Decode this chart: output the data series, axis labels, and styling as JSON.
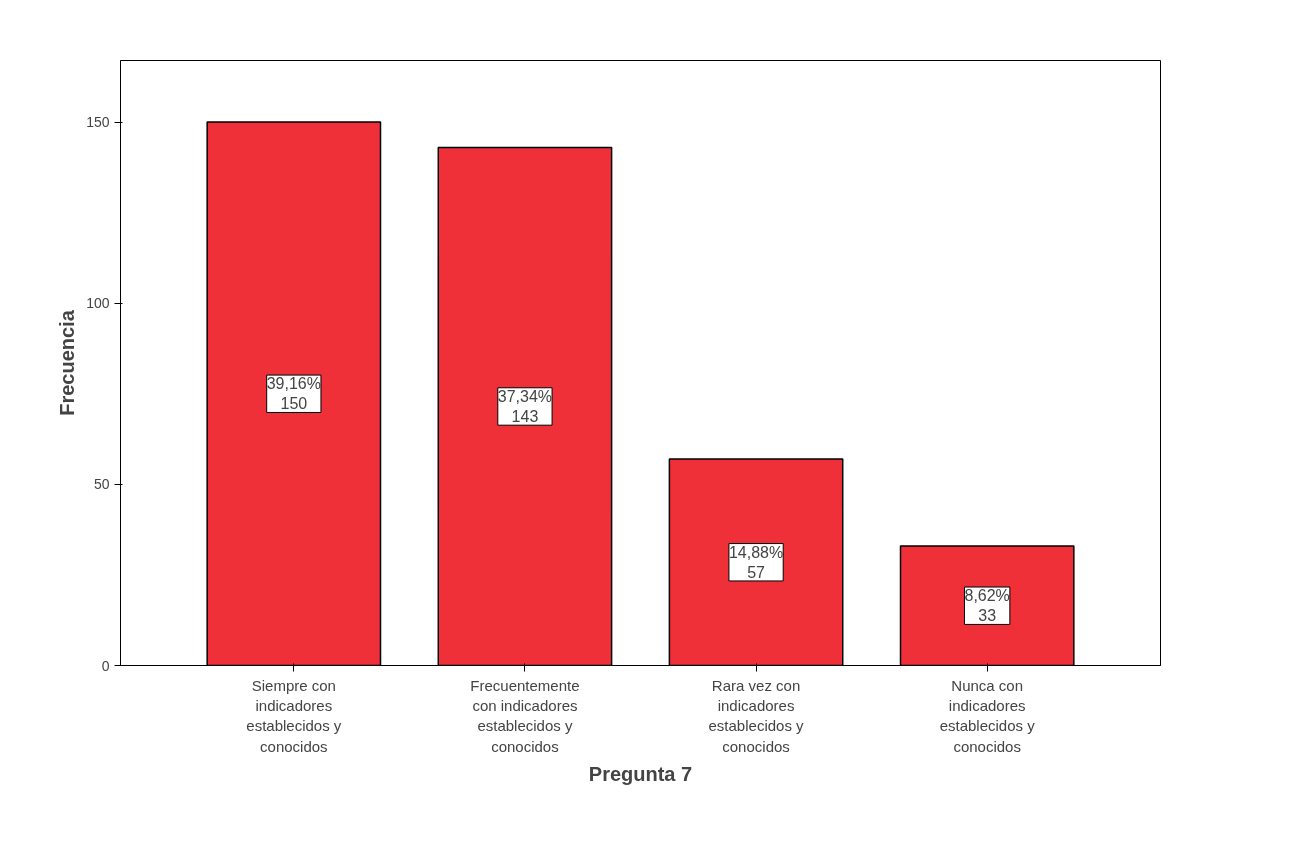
{
  "chart_data": {
    "type": "bar",
    "xlabel": "Pregunta 7",
    "ylabel": "Frecuencia",
    "categories": [
      "Siempre con indicadores establecidos y conocidos",
      "Frecuentemente con indicadores establecidos y conocidos",
      "Rara vez con indicadores establecidos y conocidos",
      "Nunca con indicadores establecidos y conocidos"
    ],
    "values": [
      150,
      143,
      57,
      33
    ],
    "value_labels": [
      "39,16%\n150",
      "37,34%\n143",
      "14,88%\n57",
      "8,62%\n33"
    ],
    "color": "#ef3038",
    "ylim": [
      0,
      167
    ],
    "yticks": [
      0,
      50,
      100,
      150
    ],
    "grid": false
  }
}
